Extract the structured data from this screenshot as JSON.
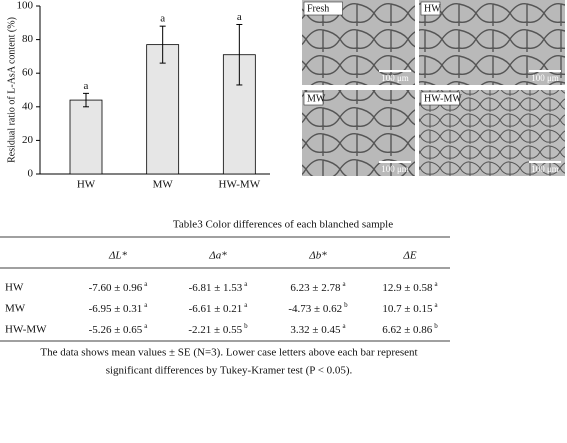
{
  "chart_data": {
    "type": "bar",
    "y_label": "Residual ratio of L-AsA content (%)",
    "categories": [
      "HW",
      "MW",
      "HW-MW"
    ],
    "values": [
      44,
      77,
      71
    ],
    "errors": [
      4,
      11,
      18
    ],
    "letters": [
      "a",
      "a",
      "a"
    ],
    "color": "#e6e6e6",
    "ylim": [
      0,
      100
    ],
    "yticks": [
      0,
      20,
      40,
      60,
      80,
      100
    ]
  },
  "micrographs": [
    {
      "label": "Fresh",
      "scale": "100 μm"
    },
    {
      "label": "HW",
      "scale": "100 μm"
    },
    {
      "label": "MW",
      "scale": "100 μm"
    },
    {
      "label": "HW-MW",
      "scale": "100 μm"
    }
  ],
  "table": {
    "caption": "Table3 Color differences of each blanched sample",
    "columns": [
      "ΔL*",
      "Δa*",
      "Δb*",
      "ΔE"
    ],
    "rows": [
      {
        "name": "HW",
        "cells": [
          {
            "value": "-7.60 ± 0.96",
            "letter": "a"
          },
          {
            "value": "-6.81 ± 1.53",
            "letter": "a"
          },
          {
            "value": "6.23 ± 2.78",
            "letter": "a"
          },
          {
            "value": "12.9 ± 0.58",
            "letter": "a"
          }
        ]
      },
      {
        "name": "MW",
        "cells": [
          {
            "value": "-6.95 ± 0.31",
            "letter": "a"
          },
          {
            "value": "-6.61 ± 0.21",
            "letter": "a"
          },
          {
            "value": "-4.73 ± 0.62",
            "letter": "b"
          },
          {
            "value": "10.7 ± 0.15",
            "letter": "a"
          }
        ]
      },
      {
        "name": "HW-MW",
        "cells": [
          {
            "value": "-5.26 ± 0.65",
            "letter": "a"
          },
          {
            "value": "-2.21 ± 0.55",
            "letter": "b"
          },
          {
            "value": "3.32 ± 0.45",
            "letter": "a"
          },
          {
            "value": "6.62 ± 0.86",
            "letter": "b"
          }
        ]
      }
    ],
    "note": [
      "The data shows mean values ± SE (N=3). Lower case letters above each bar represent",
      "significant differences by Tukey-Kramer test (P < 0.05)."
    ]
  }
}
